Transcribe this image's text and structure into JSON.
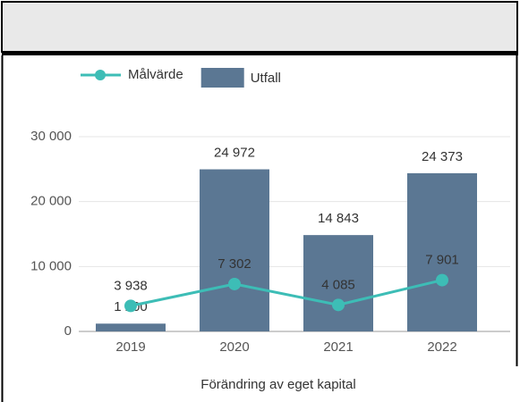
{
  "chart_data": {
    "type": "bar",
    "x_label": "Förändring av eget kapital",
    "categories": [
      "2019",
      "2020",
      "2021",
      "2022"
    ],
    "series": [
      {
        "name": "Målvärde",
        "type": "line",
        "color": "#3dbdb6",
        "values": [
          3938,
          7302,
          4085,
          7901
        ],
        "value_labels": [
          "3 938",
          "7 302",
          "4 085",
          "7 901"
        ]
      },
      {
        "name": "Utfall",
        "type": "bar",
        "color": "#5b7793",
        "values": [
          1200,
          24972,
          14843,
          24373
        ],
        "value_labels": [
          "1 200",
          "24 972",
          "14 843",
          "24 373"
        ]
      }
    ],
    "ylim": [
      0,
      30000
    ],
    "yticks": [
      {
        "value": 0,
        "label": "0"
      },
      {
        "value": 10000,
        "label": "10 000"
      },
      {
        "value": 20000,
        "label": "20 000"
      },
      {
        "value": 30000,
        "label": "30 000"
      }
    ],
    "grid": true,
    "legend": "top"
  }
}
